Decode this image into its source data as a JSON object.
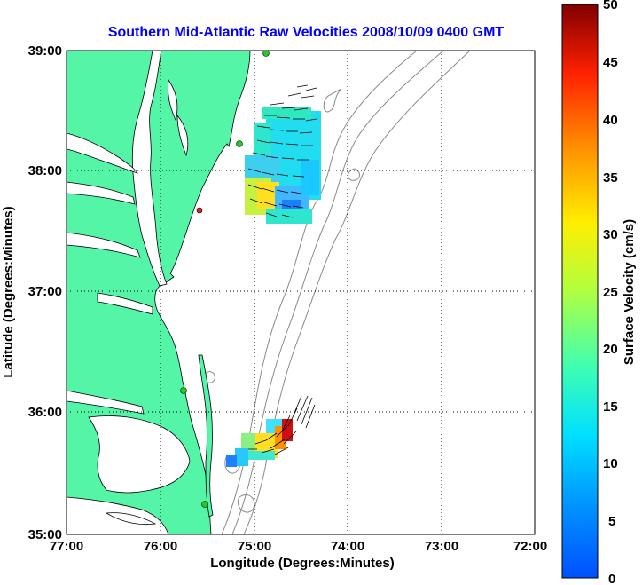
{
  "title": "Southern Mid-Atlantic Raw Velocities 2008/10/09 0400 GMT",
  "xlabel": "Longitude (Degrees:Minutes)",
  "ylabel": "Latitude (Degrees:Minutes)",
  "colorbar_label": "Surface Velocity (cm/s)",
  "x_ticks": [
    "77:00",
    "76:00",
    "75:00",
    "74:00",
    "73:00",
    "72:00"
  ],
  "y_ticks": [
    "39:00",
    "38:00",
    "37:00",
    "36:00",
    "35:00"
  ],
  "colorbar_ticks": [
    "50",
    "45",
    "40",
    "35",
    "30",
    "25",
    "20",
    "15",
    "10",
    "5",
    "0"
  ],
  "colors": {
    "land": "#55f5a8",
    "water": "#ffffff",
    "bathymetry": "#8a8a8a",
    "title": "#0000ff",
    "station_green": "#22cc22",
    "station_red": "#dd2222"
  },
  "map": {
    "lon_range": [
      -77,
      -72
    ],
    "lat_range": [
      35,
      39
    ],
    "grid": "dotted",
    "colormap": "jet",
    "velocity_range_cm_s": [
      0,
      50
    ]
  }
}
